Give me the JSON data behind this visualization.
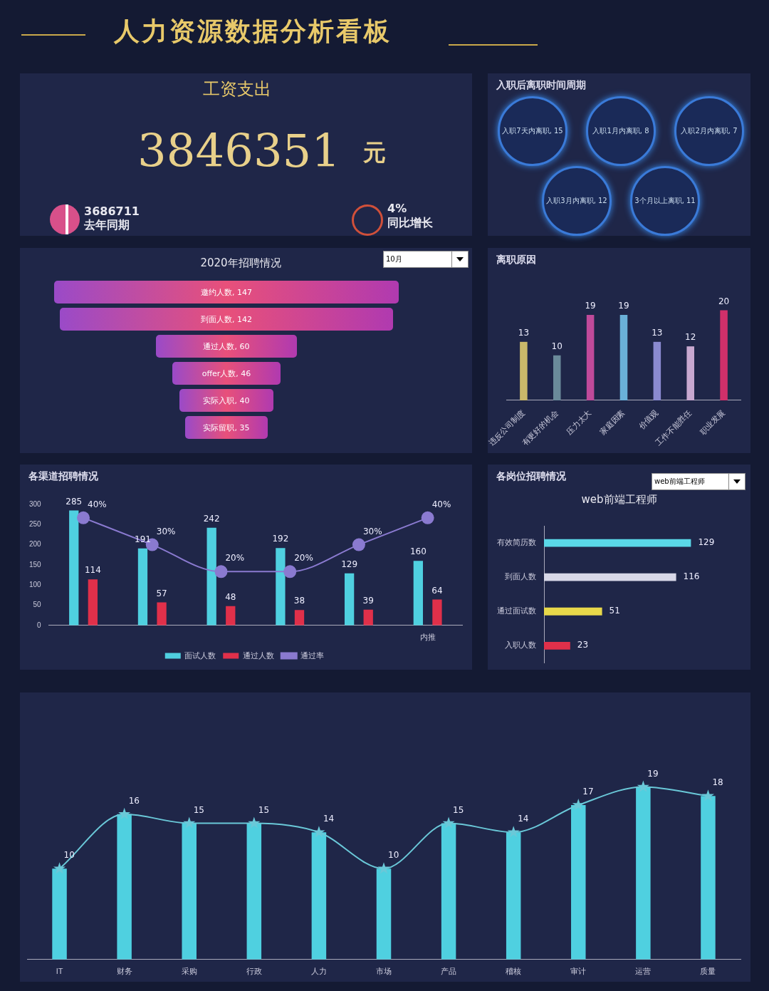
{
  "chart_data": [
    {
      "type": "other",
      "title": "人力资源数据分析看板",
      "subtitle": "工资支出",
      "annotations": [
        "3846351",
        "元",
        "3686711",
        "去年同期",
        "4%",
        "同比增长"
      ]
    },
    {
      "type": "other",
      "title": "入职后离职时间周期",
      "values": [
        15,
        8,
        7,
        12,
        11
      ],
      "value_labels": [
        "入职7天内离职, 15",
        "入职1月内离职, 8",
        "入职2月内离职, 7",
        "入职3月内离职, 12",
        "3个月以上离职, 11"
      ]
    },
    {
      "type": "other",
      "title": "2020年招聘情况",
      "values": [
        147,
        142,
        60,
        46,
        40,
        35
      ],
      "value_labels": [
        "邀约人数, 147",
        "到面人数, 142",
        "通过人数, 60",
        "offer人数, 46",
        "实际入职, 40",
        "实际留职, 35"
      ],
      "annotations": [
        "10月"
      ]
    },
    {
      "type": "bar",
      "title": "离职原因",
      "categories": [
        "违反公司制度",
        "有更好的机会",
        "压力太大",
        "家庭因素",
        "价值观",
        "工作不能胜任",
        "职业发展"
      ],
      "values": [
        13,
        10,
        19,
        19,
        13,
        12,
        20
      ],
      "colors": [
        "#c9b86a",
        "#6a8a9a",
        "#c04a9a",
        "#6ab0d8",
        "#8a8ad0",
        "#c8a8d0",
        "#d0306a"
      ],
      "data_labels": true
    },
    {
      "type": "bar",
      "title": "各渠道招聘情况",
      "categories": [
        null,
        null,
        null,
        null,
        null,
        "内推"
      ],
      "ylim": [
        0,
        300
      ],
      "yticks": [
        0,
        50,
        100,
        150,
        200,
        250,
        300
      ],
      "legend": "bottom",
      "marker": "circle",
      "series": [
        {
          "name": "面试人数",
          "type": "bar",
          "color": "#4fd0e0",
          "values": [
            285,
            191,
            242,
            192,
            129,
            160
          ],
          "value_labels": [
            "285",
            "191",
            "242",
            "192",
            "129",
            "160"
          ]
        },
        {
          "name": "通过人数",
          "type": "bar",
          "color": "#e0304a",
          "values": [
            114,
            57,
            48,
            38,
            39,
            64
          ],
          "value_labels": [
            "114",
            "57",
            "48",
            "38",
            "39",
            "64"
          ]
        },
        {
          "name": "通过率",
          "type": "line",
          "axis": "y2",
          "color": "#8a7ad0",
          "values": [
            40,
            30,
            20,
            20,
            30,
            40
          ],
          "value_labels": [
            "40%",
            "30%",
            "20%",
            "20%",
            "30%",
            "40%"
          ]
        }
      ]
    },
    {
      "type": "bar",
      "orientation": "horizontal",
      "title": "各岗位招聘情况",
      "subtitle": "web前端工程师",
      "annotations": [
        "web前端工程师"
      ],
      "categories": [
        "有效简历数",
        "到面人数",
        "通过面试数",
        "入职人数"
      ],
      "values": [
        129,
        116,
        51,
        23
      ],
      "colors": [
        "#5ad8e8",
        "#d8d8e8",
        "#e8d84a",
        "#e0304a"
      ],
      "data_labels": true
    },
    {
      "type": "bar",
      "categories": [
        "IT",
        "财务",
        "采购",
        "行政",
        "人力",
        "市场",
        "产品",
        "稽核",
        "审计",
        "运营",
        "质量"
      ],
      "marker": "star",
      "series": [
        {
          "type": "bar",
          "color": "#4fd0e0",
          "values": [
            10,
            16,
            15,
            15,
            14,
            10,
            15,
            14,
            17,
            19,
            18
          ]
        },
        {
          "type": "line",
          "color": "#6ac8d8",
          "values": [
            10,
            16,
            15,
            15,
            14,
            10,
            15,
            14,
            17,
            19,
            18
          ],
          "value_labels": [
            "10",
            "16",
            "15",
            "15",
            "14",
            "10",
            "15",
            "14",
            "17",
            "19",
            "18"
          ]
        }
      ]
    }
  ]
}
